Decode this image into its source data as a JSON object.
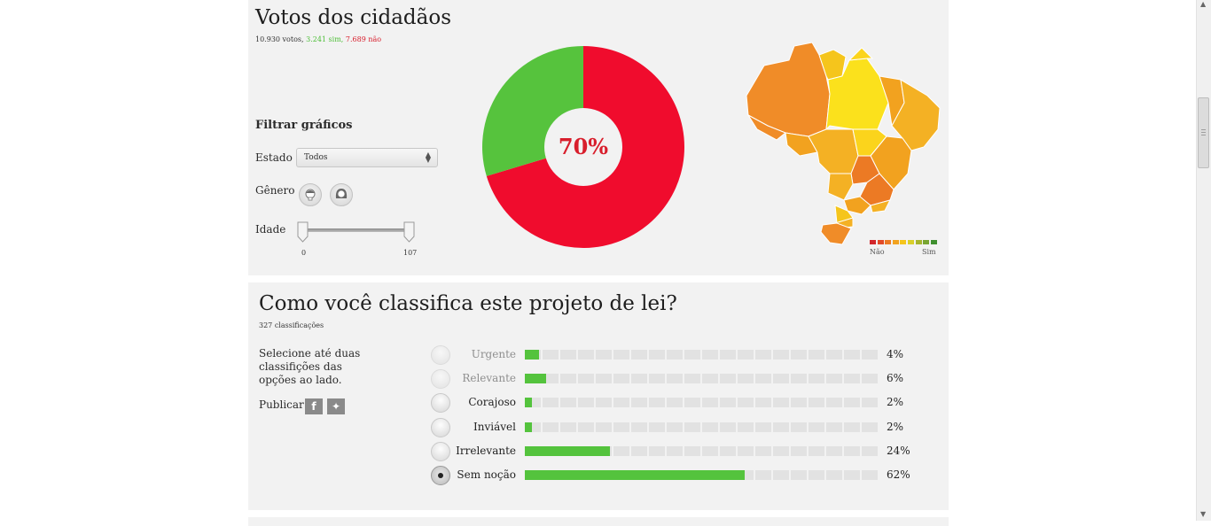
{
  "votes": {
    "title": "Votos dos cidadãos",
    "total": "10.930 votos,",
    "sim": "3.241 sim,",
    "nao": "7.689 não",
    "donut_pct": "70%"
  },
  "filters": {
    "title": "Filtrar gráficos",
    "estado_label": "Estado",
    "estado_value": "Todos",
    "genero_label": "Gênero",
    "idade_label": "Idade",
    "idade_min": "0",
    "idade_max": "107"
  },
  "map_legend": {
    "nao": "Não",
    "sim": "Sim",
    "colors": [
      "#d2262b",
      "#e24a27",
      "#ec7a24",
      "#f2a21f",
      "#f5c51c",
      "#d9cf2a",
      "#a6b42e",
      "#79a532",
      "#3f8f2f"
    ]
  },
  "chart_data": {
    "type": "pie",
    "slices": [
      {
        "label": "não",
        "value": 7689,
        "color": "#f00c2d"
      },
      {
        "label": "sim",
        "value": 3241,
        "color": "#56c33d"
      }
    ]
  },
  "classification": {
    "title": "Como você classifica este projeto de lei?",
    "count": "327 classificações",
    "instructions": "Selecione até duas classifições das opções ao lado.",
    "publish_label": "Publicar",
    "options": [
      {
        "label": "Urgente",
        "pct": "4%",
        "value": 4,
        "state": "dim"
      },
      {
        "label": "Relevante",
        "pct": "6%",
        "value": 6,
        "state": "dim"
      },
      {
        "label": "Corajoso",
        "pct": "2%",
        "value": 2,
        "state": "normal"
      },
      {
        "label": "Inviável",
        "pct": "2%",
        "value": 2,
        "state": "normal"
      },
      {
        "label": "Irrelevante",
        "pct": "24%",
        "value": 24,
        "state": "normal"
      },
      {
        "label": "Sem noção",
        "pct": "62%",
        "value": 62,
        "state": "selected"
      }
    ]
  }
}
